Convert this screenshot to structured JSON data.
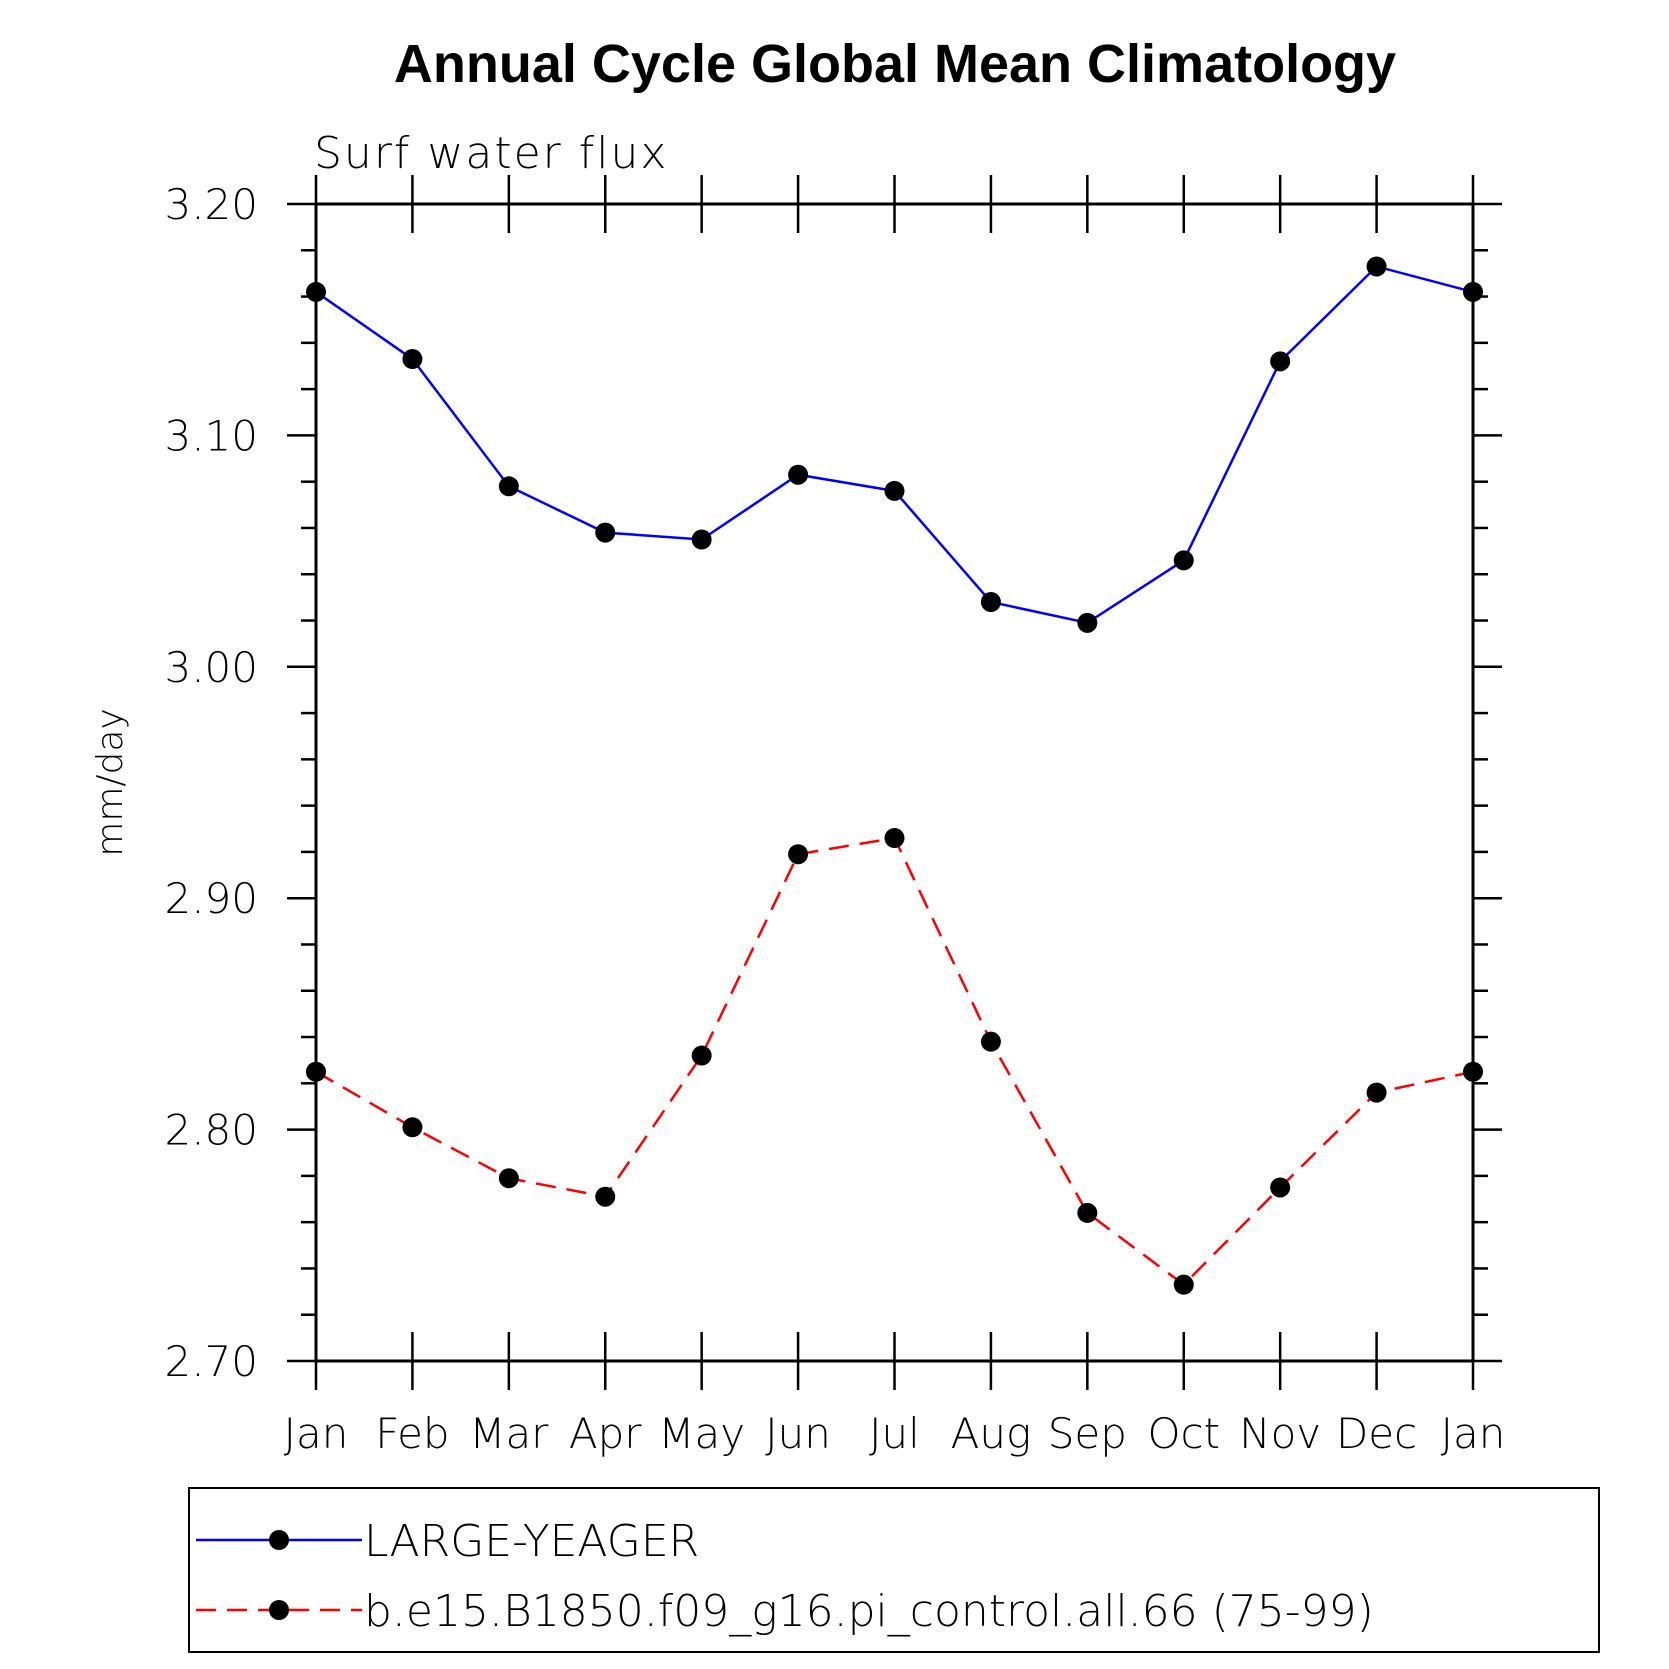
{
  "chart_data": {
    "type": "line",
    "title": "Annual Cycle Global Mean Climatology",
    "subtitle": "Surf water flux",
    "xlabel": "",
    "ylabel": "mm/day",
    "categories": [
      "Jan",
      "Feb",
      "Mar",
      "Apr",
      "May",
      "Jun",
      "Jul",
      "Aug",
      "Sep",
      "Oct",
      "Nov",
      "Dec",
      "Jan"
    ],
    "ylim": [
      2.7,
      3.2
    ],
    "yticks": [
      "2.70",
      "2.80",
      "2.90",
      "3.00",
      "3.10",
      "3.20"
    ],
    "grid": false,
    "legend_position": "bottom",
    "series": [
      {
        "name": "LARGE-YEAGER",
        "color": "#0000ff",
        "line_style": "solid",
        "marker": "filled-circle",
        "values": [
          3.162,
          3.133,
          3.078,
          3.058,
          3.055,
          3.083,
          3.076,
          3.028,
          3.019,
          3.046,
          3.132,
          3.173,
          3.162
        ]
      },
      {
        "name": "b.e15.B1850.f09_g16.pi_control.all.66 (75-99)",
        "color": "#ff0000",
        "line_style": "dashed",
        "marker": "filled-circle",
        "values": [
          2.825,
          2.801,
          2.779,
          2.771,
          2.832,
          2.919,
          2.926,
          2.838,
          2.764,
          2.733,
          2.775,
          2.816,
          2.825
        ]
      }
    ]
  }
}
